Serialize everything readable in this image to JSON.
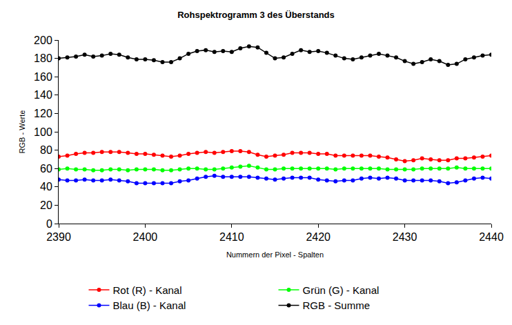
{
  "chart_data": {
    "type": "line",
    "title": "Rohspektrogramm 3 des Überstands",
    "x_label": "Nummern der Pixel - Spalten",
    "y_label": "RGB - Werte",
    "x": [
      2390,
      2391,
      2392,
      2393,
      2394,
      2395,
      2396,
      2397,
      2398,
      2399,
      2400,
      2401,
      2402,
      2403,
      2404,
      2405,
      2406,
      2407,
      2408,
      2409,
      2410,
      2411,
      2412,
      2413,
      2414,
      2415,
      2416,
      2417,
      2418,
      2419,
      2420,
      2421,
      2422,
      2423,
      2424,
      2425,
      2426,
      2427,
      2428,
      2429,
      2430,
      2431,
      2432,
      2433,
      2434,
      2435,
      2436,
      2437,
      2438,
      2439,
      2440
    ],
    "series": [
      {
        "name": "Rot (R) - Kanal",
        "color": "#ff0000",
        "marker": "circle",
        "line_style": "solid",
        "values": [
          73,
          74,
          76,
          77,
          77,
          78,
          78,
          78,
          77,
          76,
          76,
          75,
          74,
          73,
          74,
          76,
          77,
          78,
          77,
          78,
          79,
          79,
          78,
          75,
          73,
          74,
          75,
          77,
          77,
          77,
          76,
          76,
          74,
          74,
          74,
          74,
          74,
          73,
          72,
          70,
          68,
          69,
          71,
          70,
          69,
          69,
          71,
          71,
          72,
          73,
          74
        ]
      },
      {
        "name": "Grün (G) - Kanal",
        "color": "#00ff00",
        "marker": "circle",
        "line_style": "solid",
        "values": [
          59,
          60,
          59,
          59,
          58,
          58,
          59,
          59,
          58,
          59,
          59,
          59,
          58,
          58,
          59,
          60,
          60,
          59,
          59,
          60,
          61,
          62,
          63,
          61,
          59,
          59,
          60,
          60,
          60,
          60,
          60,
          60,
          59,
          60,
          60,
          60,
          60,
          60,
          59,
          59,
          59,
          59,
          60,
          60,
          60,
          60,
          61,
          60,
          60,
          60,
          60
        ]
      },
      {
        "name": "Blau (B) - Kanal",
        "color": "#0000ff",
        "marker": "circle",
        "line_style": "solid",
        "values": [
          48,
          47,
          47,
          48,
          47,
          47,
          48,
          47,
          46,
          44,
          44,
          44,
          44,
          44,
          46,
          47,
          49,
          51,
          52,
          51,
          51,
          51,
          51,
          50,
          49,
          48,
          49,
          50,
          50,
          50,
          48,
          47,
          46,
          47,
          47,
          49,
          50,
          49,
          50,
          49,
          47,
          47,
          47,
          47,
          46,
          44,
          45,
          47,
          49,
          50,
          49
        ]
      },
      {
        "name": "RGB - Summe",
        "color": "#000000",
        "marker": "circle",
        "line_style": "solid",
        "values": [
          180,
          181,
          182,
          184,
          182,
          183,
          185,
          184,
          181,
          179,
          179,
          178,
          176,
          176,
          180,
          185,
          188,
          189,
          187,
          188,
          187,
          191,
          193,
          192,
          186,
          180,
          181,
          185,
          189,
          187,
          188,
          186,
          183,
          180,
          179,
          181,
          183,
          185,
          183,
          181,
          177,
          174,
          176,
          179,
          177,
          173,
          174,
          179,
          181,
          183,
          184
        ]
      }
    ],
    "xlim": [
      2390,
      2440
    ],
    "xticks": [
      2390,
      2400,
      2410,
      2420,
      2430,
      2440
    ],
    "ylim": [
      0,
      200
    ],
    "yticks": [
      0,
      20,
      40,
      60,
      80,
      100,
      120,
      140,
      160,
      180,
      200
    ],
    "grid": false,
    "legend": "bottom"
  }
}
